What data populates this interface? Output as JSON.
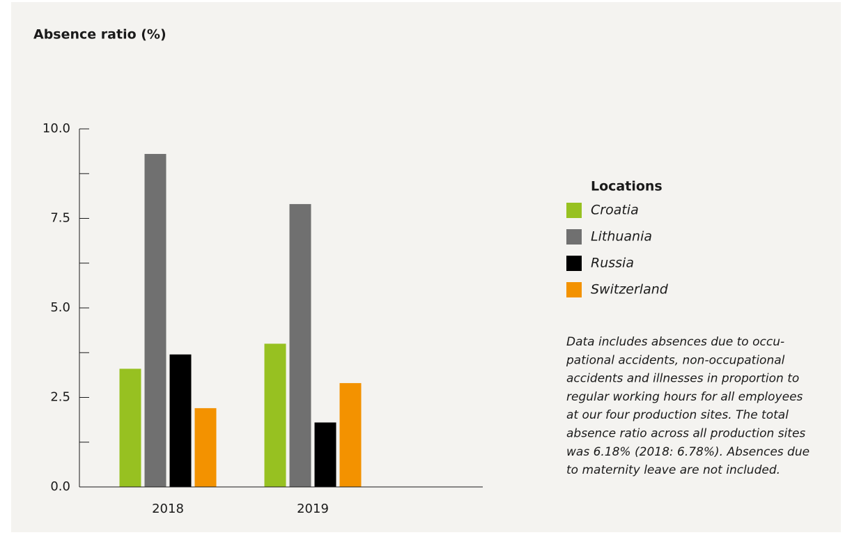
{
  "chart_data": {
    "type": "bar",
    "title": "Absence ratio (%)",
    "categories": [
      "2018",
      "2019"
    ],
    "series": [
      {
        "name": "Croatia",
        "color": "#97c121",
        "values": [
          3.3,
          4.0
        ]
      },
      {
        "name": "Lithuania",
        "color": "#707070",
        "values": [
          9.3,
          7.9
        ]
      },
      {
        "name": "Russia",
        "color": "#000000",
        "values": [
          3.7,
          1.8
        ]
      },
      {
        "name": "Switzerland",
        "color": "#f39200",
        "values": [
          2.2,
          2.9
        ]
      }
    ],
    "ylim": [
      0,
      10
    ],
    "yticks": [
      {
        "value": 0,
        "label": "0.0"
      },
      2.5,
      {
        "value": 5,
        "label": "5.0"
      },
      7.5,
      {
        "value": 10,
        "label": "10.0"
      }
    ],
    "yminorticks": [
      1.25,
      3.75,
      6.25,
      8.75
    ],
    "legend_title": "Locations",
    "note": [
      "Data includes absences due to occu-",
      "pational accidents, non-occupational",
      "accidents and illnesses in proportion to",
      "regular working hours for all employees",
      "at our four production sites. The total",
      "absence ratio across all production sites",
      "was 6.18% (2018: 6.78%). Absences due",
      "to maternity leave are not included."
    ]
  }
}
